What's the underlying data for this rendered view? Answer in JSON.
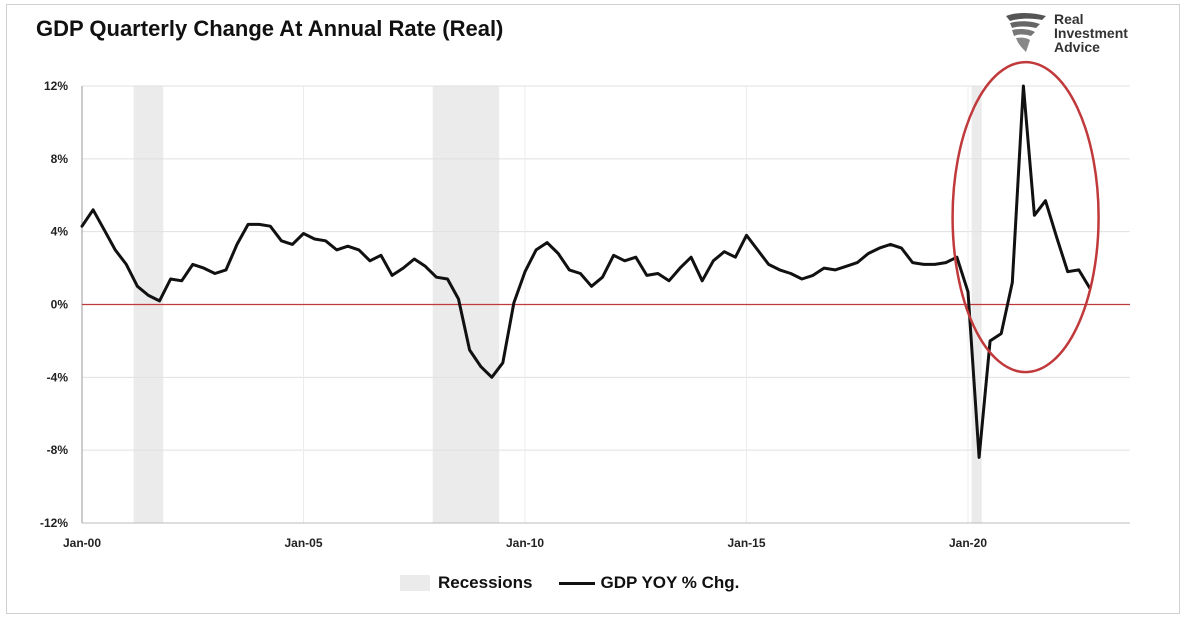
{
  "title": "GDP Quarterly Change At Annual Rate (Real)",
  "logo": {
    "line1": "Real",
    "line2": "Investment",
    "line3": "Advice"
  },
  "legend": {
    "recessions": "Recessions",
    "series": "GDP YOY % Chg."
  },
  "colors": {
    "line": "#111111",
    "zero_line": "#c0393b",
    "recession": "#ebebeb",
    "circle": "#c0393b",
    "grid": "#e0e0e0"
  },
  "chart_data": {
    "type": "line",
    "title": "GDP Quarterly Change At Annual Rate (Real)",
    "ylim": [
      -12,
      12
    ],
    "yticks": [
      -12,
      -8,
      -4,
      0,
      4,
      8,
      12
    ],
    "ytick_labels": [
      "-12%",
      "-8%",
      "-4%",
      "0%",
      "4%",
      "8%",
      "12%"
    ],
    "xlim": [
      "2000-01",
      "2022-12"
    ],
    "xticks": [
      2000,
      2005,
      2010,
      2015,
      2020
    ],
    "xtick_labels": [
      "Jan-00",
      "Jan-05",
      "Jan-10",
      "Jan-15",
      "Jan-20"
    ],
    "grid": "horizontal",
    "legend_position": "bottom-center",
    "annotation": "red ellipse around 2020-2022 rebound",
    "recessions": [
      {
        "start": "2001-03",
        "end": "2001-11"
      },
      {
        "start": "2007-12",
        "end": "2009-06"
      },
      {
        "start": "2020-02",
        "end": "2020-04"
      }
    ],
    "series": [
      {
        "name": "GDP YOY % Chg.",
        "x": [
          "2000-Q1",
          "2000-Q2",
          "2000-Q3",
          "2000-Q4",
          "2001-Q1",
          "2001-Q2",
          "2001-Q3",
          "2001-Q4",
          "2002-Q1",
          "2002-Q2",
          "2002-Q3",
          "2002-Q4",
          "2003-Q1",
          "2003-Q2",
          "2003-Q3",
          "2003-Q4",
          "2004-Q1",
          "2004-Q2",
          "2004-Q3",
          "2004-Q4",
          "2005-Q1",
          "2005-Q2",
          "2005-Q3",
          "2005-Q4",
          "2006-Q1",
          "2006-Q2",
          "2006-Q3",
          "2006-Q4",
          "2007-Q1",
          "2007-Q2",
          "2007-Q3",
          "2007-Q4",
          "2008-Q1",
          "2008-Q2",
          "2008-Q3",
          "2008-Q4",
          "2009-Q1",
          "2009-Q2",
          "2009-Q3",
          "2009-Q4",
          "2010-Q1",
          "2010-Q2",
          "2010-Q3",
          "2010-Q4",
          "2011-Q1",
          "2011-Q2",
          "2011-Q3",
          "2011-Q4",
          "2012-Q1",
          "2012-Q2",
          "2012-Q3",
          "2012-Q4",
          "2013-Q1",
          "2013-Q2",
          "2013-Q3",
          "2013-Q4",
          "2014-Q1",
          "2014-Q2",
          "2014-Q3",
          "2014-Q4",
          "2015-Q1",
          "2015-Q2",
          "2015-Q3",
          "2015-Q4",
          "2016-Q1",
          "2016-Q2",
          "2016-Q3",
          "2016-Q4",
          "2017-Q1",
          "2017-Q2",
          "2017-Q3",
          "2017-Q4",
          "2018-Q1",
          "2018-Q2",
          "2018-Q3",
          "2018-Q4",
          "2019-Q1",
          "2019-Q2",
          "2019-Q3",
          "2019-Q4",
          "2020-Q1",
          "2020-Q2",
          "2020-Q3",
          "2020-Q4",
          "2021-Q1",
          "2021-Q2",
          "2021-Q3",
          "2021-Q4",
          "2022-Q1",
          "2022-Q2",
          "2022-Q3",
          "2022-Q4"
        ],
        "values": [
          4.3,
          5.2,
          4.1,
          3.0,
          2.2,
          1.0,
          0.5,
          0.2,
          1.4,
          1.3,
          2.2,
          2.0,
          1.7,
          1.9,
          3.3,
          4.4,
          4.4,
          4.3,
          3.5,
          3.3,
          3.9,
          3.6,
          3.5,
          3.0,
          3.2,
          3.0,
          2.4,
          2.7,
          1.6,
          2.0,
          2.5,
          2.1,
          1.5,
          1.4,
          0.3,
          -2.5,
          -3.4,
          -4.0,
          -3.2,
          0.1,
          1.8,
          3.0,
          3.4,
          2.8,
          1.9,
          1.7,
          1.0,
          1.5,
          2.7,
          2.4,
          2.6,
          1.6,
          1.7,
          1.3,
          2.0,
          2.6,
          1.3,
          2.4,
          2.9,
          2.6,
          3.8,
          3.0,
          2.2,
          1.9,
          1.7,
          1.4,
          1.6,
          2.0,
          1.9,
          2.1,
          2.3,
          2.8,
          3.1,
          3.3,
          3.1,
          2.3,
          2.2,
          2.2,
          2.3,
          2.6,
          0.7,
          -8.4,
          -2.0,
          -1.6,
          1.2,
          12.0,
          4.9,
          5.7,
          3.7,
          1.8,
          1.9,
          0.9
        ]
      }
    ]
  }
}
